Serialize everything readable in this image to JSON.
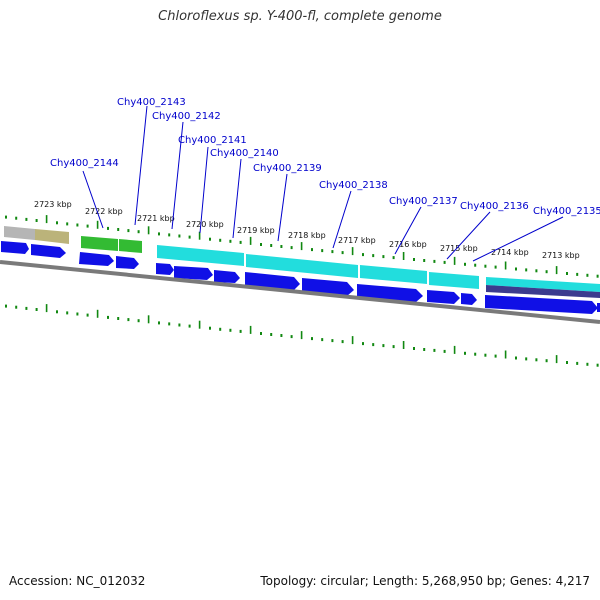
{
  "title": "Chloroflexus sp. Y-400-fl, complete genome",
  "footer": {
    "accession": "Accession: NC_012032",
    "summary": "Topology: circular; Length: 5,268,950 bp; Genes: 4,217"
  },
  "scale_labels": [
    "2723 kbp",
    "2722 kbp",
    "2721 kbp",
    "2720 kbp",
    "2719 kbp",
    "2718 kbp",
    "2717 kbp",
    "2716 kbp",
    "2715 kbp",
    "2714 kbp",
    "2713 kbp"
  ],
  "gene_labels": [
    "Chy400_2143",
    "Chy400_2142",
    "Chy400_2141",
    "Chy400_2140",
    "Chy400_2139",
    "Chy400_2138",
    "Chy400_2137",
    "Chy400_2136",
    "Chy400_2135",
    "Chy400_2144"
  ],
  "colors": {
    "backbone": "#7a7a7a",
    "cds_arrow": "#1010e6",
    "cog_cyan": "#22dddd",
    "cog_green": "#33bb33",
    "cog_olive": "#bbb37a",
    "cog_gray": "#b5b5b5",
    "cog_navy": "#3b3b8e",
    "tick": "#118811",
    "label_line": "#0000cc"
  }
}
